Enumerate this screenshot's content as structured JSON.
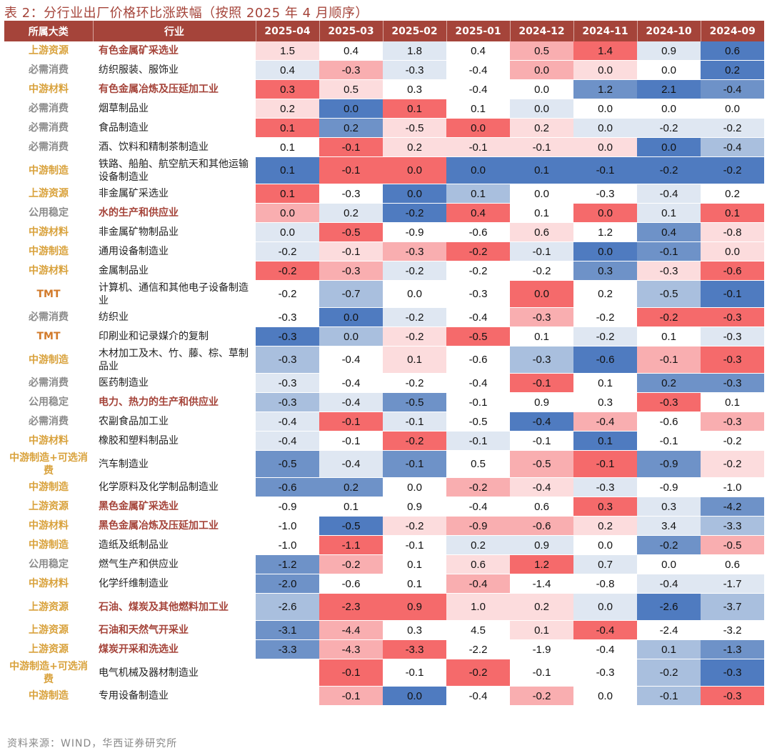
{
  "title": "表 2：分行业出厂价格环比涨跌幅（按照 2025 年 4 月顺序）",
  "headers": {
    "category": "所属大类",
    "industry": "行业",
    "months": [
      "2025-04",
      "2025-03",
      "2025-02",
      "2025-01",
      "2024-12",
      "2024-11",
      "2024-10",
      "2024-09"
    ]
  },
  "rows": [
    {
      "category": "上游资源",
      "industry": "有色金属矿采选业",
      "values": [
        "1.5",
        "0.4",
        "1.8",
        "0.4",
        "0.5",
        "1.4",
        "0.9",
        "0.6"
      ]
    },
    {
      "category": "必需消费",
      "industry": "纺织服装、服饰业",
      "values": [
        "0.4",
        "-0.3",
        "-0.3",
        "-0.4",
        "0.0",
        "0.0",
        "0.0",
        "0.2"
      ]
    },
    {
      "category": "中游材料",
      "industry": "有色金属冶炼及压延加工业",
      "values": [
        "0.3",
        "0.5",
        "0.3",
        "-0.4",
        "0.0",
        "1.2",
        "2.1",
        "-0.4"
      ]
    },
    {
      "category": "必需消费",
      "industry": "烟草制品业",
      "values": [
        "0.2",
        "0.0",
        "0.1",
        "0.1",
        "0.0",
        "0.0",
        "0.0",
        "0.0"
      ]
    },
    {
      "category": "必需消费",
      "industry": "食品制造业",
      "values": [
        "0.1",
        "0.2",
        "-0.5",
        "0.0",
        "0.2",
        "0.0",
        "-0.2",
        "-0.2"
      ]
    },
    {
      "category": "必需消费",
      "industry": "酒、饮料和精制茶制造业",
      "values": [
        "0.1",
        "-0.1",
        "0.2",
        "-0.1",
        "-0.1",
        "0.0",
        "0.0",
        "-0.4"
      ]
    },
    {
      "category": "中游制造",
      "industry": "铁路、船舶、航空航天和其他运输设备制造业",
      "values": [
        "0.1",
        "-0.1",
        "0.0",
        "0.0",
        "0.1",
        "-0.1",
        "-0.2",
        "-0.2"
      ]
    },
    {
      "category": "上游资源",
      "industry": "非金属矿采选业",
      "values": [
        "0.1",
        "-0.3",
        "0.0",
        "0.1",
        "0.0",
        "-0.3",
        "-0.4",
        "0.2"
      ]
    },
    {
      "category": "公用稳定",
      "industry": "水的生产和供应业",
      "values": [
        "0.0",
        "0.2",
        "-0.2",
        "0.4",
        "0.1",
        "0.0",
        "0.1",
        "0.1"
      ]
    },
    {
      "category": "中游材料",
      "industry": "非金属矿物制品业",
      "values": [
        "0.0",
        "-0.5",
        "-0.9",
        "-0.6",
        "0.6",
        "1.2",
        "0.4",
        "-0.8"
      ]
    },
    {
      "category": "中游制造",
      "industry": "通用设备制造业",
      "values": [
        "-0.2",
        "-0.1",
        "-0.3",
        "-0.2",
        "-0.1",
        "0.0",
        "-0.1",
        "0.0"
      ]
    },
    {
      "category": "中游材料",
      "industry": "金属制品业",
      "values": [
        "-0.2",
        "-0.3",
        "-0.2",
        "-0.2",
        "-0.2",
        "0.3",
        "-0.3",
        "-0.6"
      ]
    },
    {
      "category": "TMT",
      "industry": "计算机、通信和其他电子设备制造业",
      "values": [
        "-0.2",
        "-0.7",
        "0.0",
        "-0.3",
        "0.0",
        "0.2",
        "-0.5",
        "-0.1"
      ]
    },
    {
      "category": "必需消费",
      "industry": "纺织业",
      "values": [
        "-0.3",
        "0.0",
        "-0.2",
        "-0.4",
        "-0.3",
        "-0.2",
        "-0.2",
        "-0.3"
      ]
    },
    {
      "category": "TMT",
      "industry": "印刷业和记录媒介的复制",
      "values": [
        "-0.3",
        "0.0",
        "-0.2",
        "-0.5",
        "0.1",
        "-0.2",
        "0.1",
        "-0.3"
      ]
    },
    {
      "category": "中游制造",
      "industry": "木材加工及木、竹、藤、棕、草制品业",
      "values": [
        "-0.3",
        "-0.4",
        "0.1",
        "-0.6",
        "-0.3",
        "-0.6",
        "-0.1",
        "-0.3"
      ]
    },
    {
      "category": "必需消费",
      "industry": "医药制造业",
      "values": [
        "-0.3",
        "-0.4",
        "-0.2",
        "-0.4",
        "-0.1",
        "0.1",
        "0.2",
        "-0.3"
      ]
    },
    {
      "category": "公用稳定",
      "industry": "电力、热力的生产和供应业",
      "values": [
        "-0.3",
        "-0.4",
        "-0.5",
        "-0.1",
        "0.9",
        "0.3",
        "-0.3",
        "0.1"
      ]
    },
    {
      "category": "必需消费",
      "industry": "农副食品加工业",
      "values": [
        "-0.4",
        "-0.1",
        "-0.1",
        "-0.5",
        "-0.4",
        "-0.4",
        "-0.6",
        "-0.3"
      ]
    },
    {
      "category": "中游材料",
      "industry": "橡胶和塑料制品业",
      "values": [
        "-0.4",
        "-0.1",
        "-0.2",
        "-0.1",
        "-0.1",
        "0.1",
        "-0.1",
        "-0.2"
      ]
    },
    {
      "category": "中游制造+可选消费",
      "industry": "汽车制造业",
      "values": [
        "-0.5",
        "-0.4",
        "-0.1",
        "0.5",
        "-0.5",
        "-0.1",
        "-0.9",
        "-0.2"
      ]
    },
    {
      "category": "中游制造",
      "industry": "化学原料及化学制品制造业",
      "values": [
        "-0.6",
        "0.2",
        "0.0",
        "-0.2",
        "-0.4",
        "-0.3",
        "-0.9",
        "-1.0"
      ]
    },
    {
      "category": "上游资源",
      "industry": "黑色金属矿采选业",
      "values": [
        "-0.9",
        "0.1",
        "0.9",
        "-0.4",
        "0.6",
        "0.3",
        "0.3",
        "-4.2"
      ]
    },
    {
      "category": "中游材料",
      "industry": "黑色金属冶炼及压延加工业",
      "values": [
        "-1.0",
        "-0.5",
        "-0.2",
        "-0.9",
        "-0.6",
        "0.2",
        "3.4",
        "-3.3"
      ]
    },
    {
      "category": "中游制造",
      "industry": "造纸及纸制品业",
      "values": [
        "-1.0",
        "-1.1",
        "-0.1",
        "0.2",
        "0.9",
        "0.0",
        "-0.2",
        "-0.5"
      ]
    },
    {
      "category": "公用稳定",
      "industry": "燃气生产和供应业",
      "values": [
        "-1.2",
        "-0.2",
        "0.1",
        "0.6",
        "1.2",
        "0.7",
        "0.0",
        "0.6"
      ]
    },
    {
      "category": "中游材料",
      "industry": "化学纤维制造业",
      "values": [
        "-2.0",
        "-0.6",
        "0.1",
        "-0.4",
        "-1.4",
        "-0.8",
        "-0.4",
        "-1.7"
      ]
    },
    {
      "category": "上游资源",
      "industry": "石油、煤炭及其他燃料加工业",
      "values": [
        "-2.6",
        "-2.3",
        "0.9",
        "1.0",
        "0.2",
        "0.0",
        "-2.6",
        "-3.7"
      ]
    },
    {
      "category": "上游资源",
      "industry": "石油和天然气开采业",
      "values": [
        "-3.1",
        "-4.4",
        "0.3",
        "4.5",
        "0.1",
        "-0.4",
        "-2.4",
        "-3.2"
      ]
    },
    {
      "category": "上游资源",
      "industry": "煤炭开采和洗选业",
      "values": [
        "-3.3",
        "-4.3",
        "-3.3",
        "-2.2",
        "-1.9",
        "-0.4",
        "0.1",
        "-1.3"
      ]
    },
    {
      "category": "中游制造+可选消费",
      "industry": "电气机械及器材制造业",
      "values": [
        "",
        "-0.1",
        "-0.1",
        "-0.2",
        "-0.1",
        "-0.3",
        "-0.2",
        "-0.3"
      ]
    },
    {
      "category": "中游制造",
      "industry": "专用设备制造业",
      "values": [
        "",
        "-0.1",
        "0.0",
        "-0.4",
        "-0.2",
        "0.0",
        "-0.1",
        "-0.3"
      ]
    }
  ],
  "source": "资料来源：WIND，华西证券研究所",
  "colors": {
    "header_bg": "#a5443a",
    "cell_palette": [
      "#f56a6b",
      "#f9aeb0",
      "#fcdcdd",
      "#ffffff",
      "#dfe7f2",
      "#a9bfde",
      "#6e92c8",
      "#4f7bc0"
    ]
  }
}
